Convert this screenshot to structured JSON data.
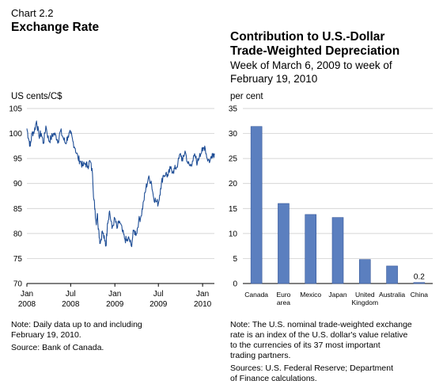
{
  "header": {
    "chart_label": "Chart 2.2"
  },
  "left_panel": {
    "title": "Exchange Rate",
    "unit": "US cents/C$",
    "notes": [
      "Note: Daily data up to and including",
      "February 19, 2010."
    ],
    "source": "Source: Bank of Canada.",
    "line_color": "#1f4e96"
  },
  "right_panel": {
    "title_lines": [
      "Contribution to U.S.-Dollar",
      "Trade-Weighted Depreciation"
    ],
    "subtitle_lines": [
      "Week of March 6, 2009 to week of",
      "February 19, 2010"
    ],
    "unit": "per cent",
    "notes": [
      "Note: The U.S. nominal trade-weighted exchange",
      "rate is an index of the U.S. dollar's value relative",
      "to the currencies of its 37 most important",
      "trading partners."
    ],
    "sources": [
      "Sources: U.S. Federal Reserve; Department",
      "of Finance calculations."
    ],
    "bar_color": "#5b7fbf",
    "bar_edge": "#36589a"
  },
  "chart_data": [
    {
      "type": "line",
      "title": "Exchange Rate",
      "ylabel": "US cents/C$",
      "ylim": [
        70,
        105
      ],
      "yticks": [
        70,
        75,
        80,
        85,
        90,
        95,
        100,
        105
      ],
      "xlim": [
        "2008-01-01",
        "2010-02-19"
      ],
      "xticks": [
        {
          "date": "2008-01-01",
          "label": [
            "Jan",
            "2008"
          ]
        },
        {
          "date": "2008-07-01",
          "label": [
            "Jul",
            "2008"
          ]
        },
        {
          "date": "2009-01-01",
          "label": [
            "Jan",
            "2009"
          ]
        },
        {
          "date": "2009-07-01",
          "label": [
            "Jul",
            "2009"
          ]
        },
        {
          "date": "2010-01-01",
          "label": [
            "Jan",
            "2010"
          ]
        }
      ],
      "grid": "horizontal",
      "series": [
        {
          "x": [
            "2008-01-01",
            "2008-01-08",
            "2008-01-15",
            "2008-01-22",
            "2008-02-01",
            "2008-02-10",
            "2008-02-20",
            "2008-03-01",
            "2008-03-10",
            "2008-03-20",
            "2008-04-01",
            "2008-04-10",
            "2008-04-20",
            "2008-05-01",
            "2008-05-10",
            "2008-05-20",
            "2008-06-01",
            "2008-06-10",
            "2008-06-20",
            "2008-07-01",
            "2008-07-10",
            "2008-07-20",
            "2008-08-01",
            "2008-08-10",
            "2008-08-20",
            "2008-09-01",
            "2008-09-10",
            "2008-09-20",
            "2008-09-30",
            "2008-10-05",
            "2008-10-10",
            "2008-10-15",
            "2008-10-20",
            "2008-10-25",
            "2008-11-01",
            "2008-11-10",
            "2008-11-20",
            "2008-11-25",
            "2008-12-01",
            "2008-12-10",
            "2008-12-20",
            "2009-01-01",
            "2009-01-10",
            "2009-01-20",
            "2009-02-01",
            "2009-02-10",
            "2009-02-20",
            "2009-03-01",
            "2009-03-10",
            "2009-03-20",
            "2009-04-01",
            "2009-04-10",
            "2009-04-20",
            "2009-05-01",
            "2009-05-10",
            "2009-05-20",
            "2009-06-01",
            "2009-06-10",
            "2009-06-20",
            "2009-07-01",
            "2009-07-10",
            "2009-07-20",
            "2009-08-01",
            "2009-08-10",
            "2009-08-20",
            "2009-09-01",
            "2009-09-10",
            "2009-09-20",
            "2009-10-01",
            "2009-10-10",
            "2009-10-20",
            "2009-11-01",
            "2009-11-10",
            "2009-11-20",
            "2009-12-01",
            "2009-12-10",
            "2009-12-20",
            "2010-01-01",
            "2010-01-10",
            "2010-01-20",
            "2010-02-01",
            "2010-02-10",
            "2010-02-19"
          ],
          "y": [
            101,
            99,
            97.5,
            100,
            100.5,
            102.5,
            99.5,
            100,
            98,
            101.5,
            98.5,
            99,
            100,
            99.5,
            98.5,
            100.5,
            99,
            98,
            99.5,
            100,
            98.5,
            97,
            95,
            94.5,
            93.5,
            94,
            93.5,
            94.5,
            92,
            87,
            85,
            82,
            84,
            81,
            78,
            80.5,
            78.5,
            77.5,
            82,
            84.5,
            81,
            83,
            81,
            82.5,
            80.5,
            79,
            78.5,
            79,
            77.5,
            80.5,
            80,
            82.5,
            83.5,
            86.5,
            89,
            91,
            90.5,
            87.5,
            86.5,
            86,
            89,
            91.5,
            92,
            91.5,
            93,
            92.5,
            93,
            94,
            96,
            94.5,
            96.5,
            94,
            93.5,
            94.5,
            95.5,
            94,
            96,
            96.5,
            97.5,
            95,
            94.5,
            96,
            96
          ]
        }
      ]
    },
    {
      "type": "bar",
      "title": "Contribution to U.S.-Dollar Trade-Weighted Depreciation",
      "subtitle": "Week of March 6, 2009 to week of February 19, 2010",
      "ylabel": "per cent",
      "ylim": [
        0,
        35
      ],
      "yticks": [
        0,
        5,
        10,
        15,
        20,
        25,
        30,
        35
      ],
      "categories": [
        [
          "Canada"
        ],
        [
          "Euro",
          "area"
        ],
        [
          "Mexico"
        ],
        [
          "Japan"
        ],
        [
          "United",
          "Kingdom"
        ],
        [
          "Australia"
        ],
        [
          "China"
        ]
      ],
      "values": [
        31.4,
        16.0,
        13.8,
        13.2,
        4.8,
        3.5,
        0.2
      ],
      "data_labels": [
        {
          "index": 6,
          "text": "0.2"
        }
      ],
      "grid": "horizontal"
    }
  ]
}
